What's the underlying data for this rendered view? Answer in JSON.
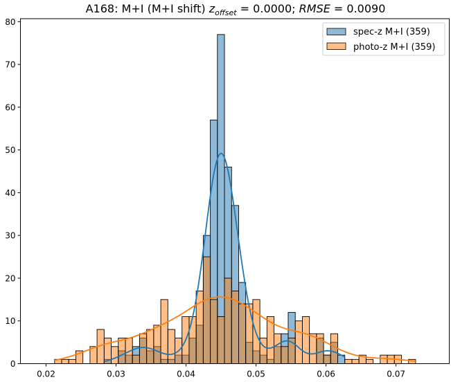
{
  "chart_data": {
    "type": "bar",
    "title_parts": {
      "prefix": "A168: M+I (M+I shift) ",
      "z": "z",
      "z_sub": "offset",
      "z_val": " = 0.0000; ",
      "rmse": "RMSE",
      "rmse_val": " = 0.0090"
    },
    "title": "A168: M+I (M+I shift) z_offset = 0.0000; RMSE = 0.0090",
    "xlabel": "",
    "ylabel": "",
    "xlim": [
      0.01634,
      0.07761
    ],
    "ylim": [
      0,
      80.7
    ],
    "xticks": [
      0.02,
      0.03,
      0.04,
      0.05,
      0.06,
      0.07
    ],
    "xtick_labels": [
      "0.02",
      "0.03",
      "0.04",
      "0.05",
      "0.06",
      "0.07"
    ],
    "yticks": [
      0,
      10,
      20,
      30,
      40,
      50,
      60,
      70,
      80
    ],
    "ytick_labels": [
      "0",
      "10",
      "20",
      "30",
      "40",
      "50",
      "60",
      "70",
      "80"
    ],
    "bin_start": 0.02122,
    "bin_width": 0.0010114,
    "grid": false,
    "legend_position": "top-right",
    "series": [
      {
        "name": "spec-z M+I (359)",
        "color": "#1f77b4",
        "values": [
          0,
          0,
          0,
          0,
          0,
          0,
          0,
          1,
          0,
          3,
          2,
          4,
          6,
          3,
          4,
          1,
          1,
          2,
          2,
          6,
          9,
          30,
          57,
          77,
          46,
          37,
          19,
          5,
          3,
          2,
          1,
          4,
          7,
          12,
          0,
          0,
          0,
          6,
          2,
          5,
          2,
          0,
          0,
          0,
          0,
          0,
          0,
          0,
          0,
          0,
          0
        ]
      },
      {
        "name": "photo-z M+I (359)",
        "color": "#ff7f0e",
        "values": [
          1,
          1,
          1,
          3,
          0,
          4,
          8,
          6,
          4,
          6,
          6,
          2,
          7,
          8,
          9,
          15,
          8,
          6,
          11,
          11,
          17,
          25,
          15,
          11,
          20,
          17,
          14,
          14,
          15,
          6,
          11,
          7,
          4,
          6,
          10,
          11,
          7,
          7,
          2,
          7,
          0,
          1,
          1,
          2,
          1,
          0,
          2,
          2,
          2,
          0,
          1
        ]
      }
    ],
    "kde": true
  }
}
